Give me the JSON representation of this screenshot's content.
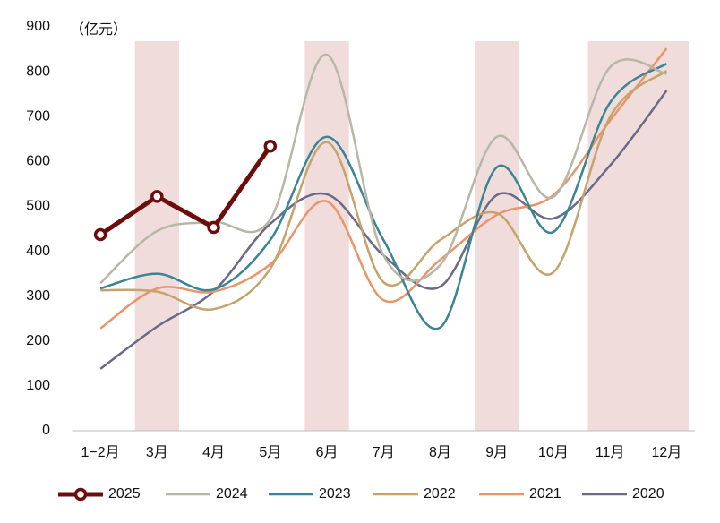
{
  "chart_data": {
    "type": "line",
    "unit_label": "（亿元）",
    "categories": [
      "1−2月",
      "3月",
      "4月",
      "5月",
      "6月",
      "7月",
      "8月",
      "9月",
      "10月",
      "11月",
      "12月"
    ],
    "shaded_categories": [
      "3月",
      "6月",
      "9月",
      "11月",
      "12月"
    ],
    "shade_color": "#f1dcdc",
    "ylim": [
      0,
      900
    ],
    "yticks": [
      0,
      100,
      200,
      300,
      400,
      500,
      600,
      700,
      800,
      900
    ],
    "legend": "bottom",
    "series": [
      {
        "name": "2025",
        "color": "#6b0d0d",
        "smooth": false,
        "markers": true,
        "values": [
          437,
          522,
          453,
          634,
          null,
          null,
          null,
          null,
          null,
          null,
          null
        ]
      },
      {
        "name": "2024",
        "color": "#b7b7a6",
        "smooth": true,
        "values": [
          329,
          445,
          465,
          471,
          838,
          391,
          369,
          655,
          521,
          810,
          795
        ]
      },
      {
        "name": "2023",
        "color": "#3a8494",
        "smooth": true,
        "values": [
          317,
          350,
          315,
          425,
          655,
          425,
          230,
          587,
          443,
          731,
          818
        ]
      },
      {
        "name": "2022",
        "color": "#c4a46a",
        "smooth": true,
        "values": [
          313,
          310,
          271,
          361,
          643,
          331,
          425,
          485,
          353,
          699,
          802
        ]
      },
      {
        "name": "2021",
        "color": "#e8956a",
        "smooth": true,
        "values": [
          228,
          317,
          310,
          371,
          511,
          291,
          381,
          481,
          525,
          691,
          852
        ]
      },
      {
        "name": "2020",
        "color": "#6a6a88",
        "smooth": true,
        "values": [
          138,
          232,
          311,
          461,
          527,
          391,
          321,
          525,
          473,
          591,
          758
        ]
      }
    ]
  }
}
